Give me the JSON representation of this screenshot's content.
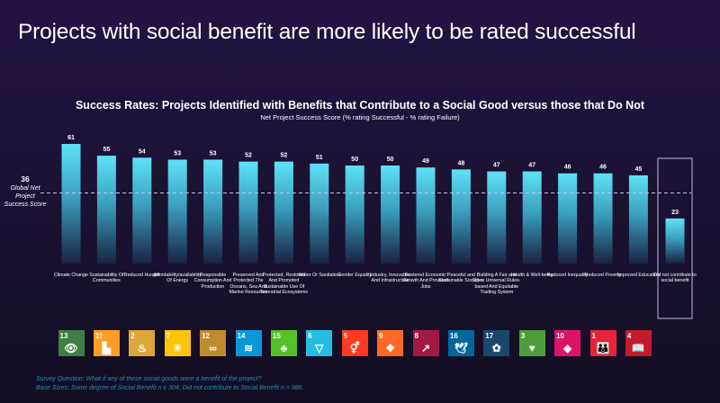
{
  "headline": "Projects with social benefit are more likely to be rated successful",
  "chart_data": {
    "type": "bar",
    "title": "Success Rates: Projects Identified with Benefits that Contribute to a Social Good versus those that Do Not",
    "subtitle": "Net Project Success Score (% rating Successful - % rating Failure)",
    "xlabel": "",
    "ylabel": "",
    "ylim": [
      0,
      65
    ],
    "grid": false,
    "categories": [
      "Climate Change",
      "Sustainability Of Communities",
      "Reduced Hunger",
      "Affordability/availability Of Energy",
      "Responsible Consumption And Production",
      "Preserved And Protected The Oceans, Sea And Marine Resources",
      "Protected, Restored And Promoted Sustainable Use Of Terrestrial Ecosystems",
      "Water Or Sanitation",
      "Gender Equality",
      "Industry, Innovation And Infrastructure",
      "Fostered Economic Growth And Provided Jobs",
      "Peaceful and Sustainable Societies",
      "Building A Fair and Open Universal Rules-based And Equitable Trading System",
      "Health & Well-being",
      "Reduced Inequality",
      "Reduced Poverty",
      "Improved Education",
      "Did not contribute to social benefit"
    ],
    "values": [
      61,
      55,
      54,
      53,
      53,
      52,
      52,
      51,
      50,
      50,
      49,
      48,
      47,
      47,
      46,
      46,
      45,
      23
    ],
    "highlighted_category": "Did not contribute to social benefit",
    "reference_line": {
      "value": 36,
      "label": "Global Net Project Success Score",
      "style": "dashed"
    },
    "bar_color_top": "#5ee0f5",
    "bar_color_bottom": "#1a2340"
  },
  "category_labels": [
    "Climate Change",
    "Sustainability Of Communities",
    "Reduced Hunger",
    "Affordability/availability Of Energy",
    "Responsible Consumption And Production",
    "Preserved And Protected The Oceans, Sea And Marine Resources",
    "Protected, Restored And Promoted Sustainable Use Of Terrestrial Ecosystems",
    "Water Or Sanitation",
    "Gender Equality",
    "Industry, Innovation And Infrastructure",
    "Fostered Economic Growth And Provided Jobs",
    "Peaceful and Sustainable Societies",
    "Building A Fair and Open Universal Rules-based And Equitable Trading System",
    "Health & Well-being",
    "Reduced Inequality",
    "Reduced Poverty",
    "Improved Education",
    "Did not contribute to social benefit"
  ],
  "global_score": {
    "value": "36",
    "label": "Global Net Project Success Score"
  },
  "sdg_icons": [
    {
      "number": "13",
      "name": "climate-action",
      "color": "#3f7e44",
      "glyph": "👁"
    },
    {
      "number": "11",
      "name": "sustainable-cities",
      "color": "#fd9d24",
      "glyph": "▙"
    },
    {
      "number": "2",
      "name": "zero-hunger",
      "color": "#dda63a",
      "glyph": "♨"
    },
    {
      "number": "7",
      "name": "affordable-clean-energy",
      "color": "#fcc30b",
      "glyph": "☀"
    },
    {
      "number": "12",
      "name": "responsible-consumption",
      "color": "#bf8b2e",
      "glyph": "∞"
    },
    {
      "number": "14",
      "name": "life-below-water",
      "color": "#0a97d9",
      "glyph": "≋"
    },
    {
      "number": "15",
      "name": "life-on-land",
      "color": "#56c02b",
      "glyph": "♣"
    },
    {
      "number": "6",
      "name": "clean-water",
      "color": "#26bde2",
      "glyph": "▽"
    },
    {
      "number": "5",
      "name": "gender-equality",
      "color": "#ff3a21",
      "glyph": "⚥"
    },
    {
      "number": "9",
      "name": "industry-innovation",
      "color": "#fd6925",
      "glyph": "❖"
    },
    {
      "number": "8",
      "name": "decent-work",
      "color": "#a21942",
      "glyph": "↗"
    },
    {
      "number": "16",
      "name": "peace-justice",
      "color": "#00689d",
      "glyph": "🕊"
    },
    {
      "number": "17",
      "name": "partnerships",
      "color": "#19486a",
      "glyph": "✿"
    },
    {
      "number": "3",
      "name": "good-health",
      "color": "#4c9f38",
      "glyph": "♥"
    },
    {
      "number": "10",
      "name": "reduced-inequalities",
      "color": "#dd1367",
      "glyph": "◈"
    },
    {
      "number": "1",
      "name": "no-poverty",
      "color": "#e5243b",
      "glyph": "👪"
    },
    {
      "number": "4",
      "name": "quality-education",
      "color": "#c5192d",
      "glyph": "📖"
    }
  ],
  "footnote": {
    "line1": "Survey Question: What if any of these social goods were a benefit of the project?",
    "line2": "Base Sizes: Some degree of Social Benefit n ≥ 304; Did not contribute to Social Benefit n = 986."
  }
}
